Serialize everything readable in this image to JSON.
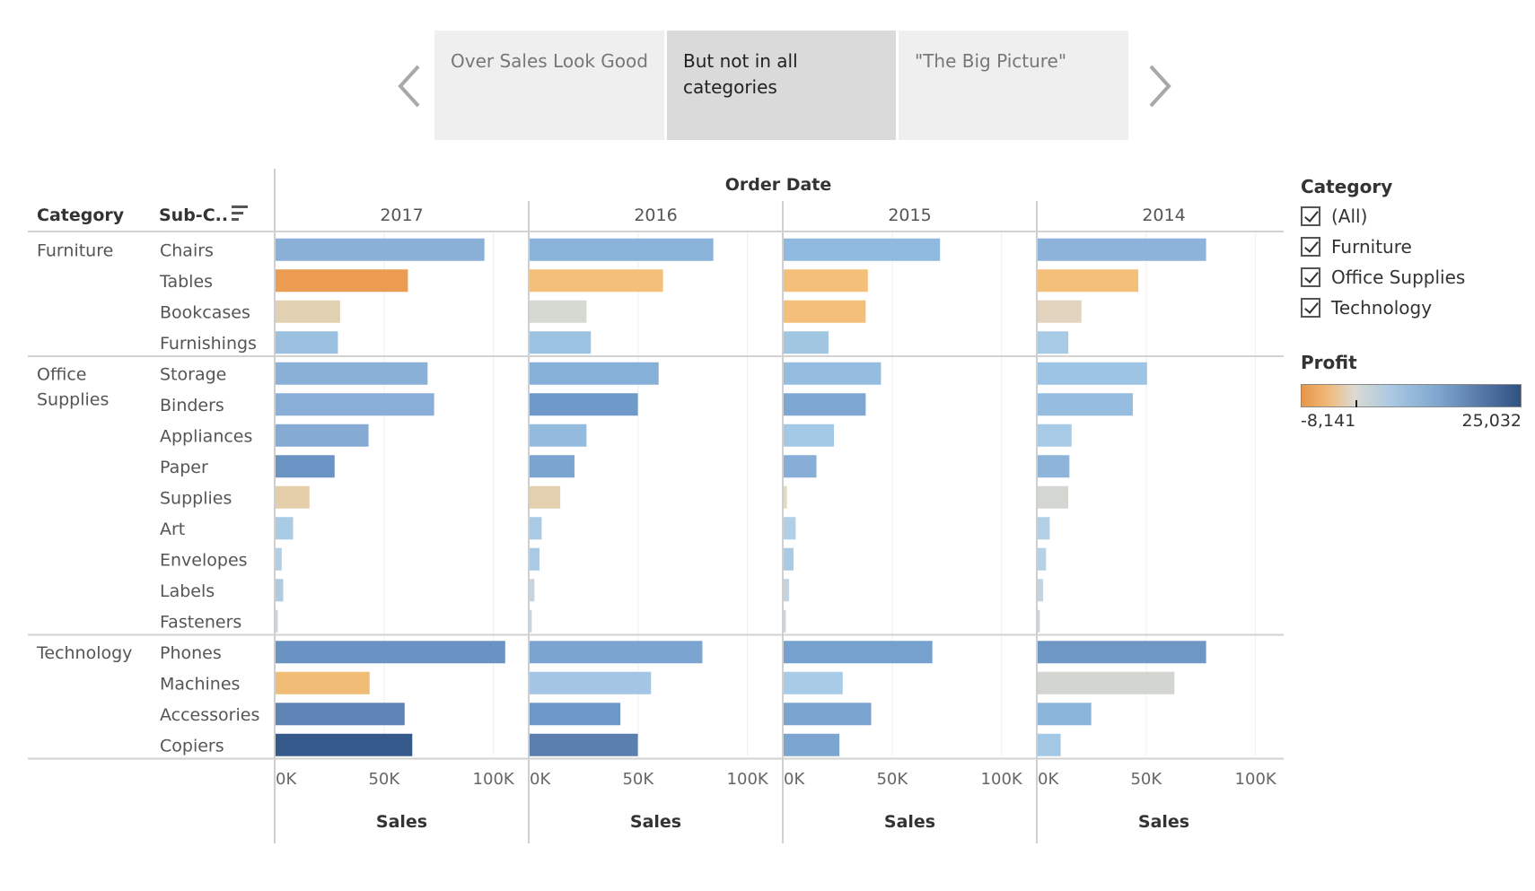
{
  "story": {
    "points": [
      {
        "label": "Over Sales Look Good",
        "active": false
      },
      {
        "label": "But not in all categories",
        "active": true
      },
      {
        "label": "\"The Big Picture\"",
        "active": false
      }
    ],
    "prev_icon": "chevron-left-icon",
    "next_icon": "chevron-right-icon"
  },
  "legend": {
    "category_title": "Category",
    "category_items": [
      "(All)",
      "Furniture",
      "Office Supplies",
      "Technology"
    ],
    "profit_title": "Profit",
    "profit_min": "-8,141",
    "profit_max": "25,032"
  },
  "chart_data": {
    "type": "bar",
    "column_header": "Order Date",
    "row_headers": {
      "category": "Category",
      "subcategory": "Sub-C.."
    },
    "sort_icon": "sort-icon",
    "years": [
      "2017",
      "2016",
      "2015",
      "2014"
    ],
    "xlabel": "Sales",
    "xticks": [
      "0K",
      "50K",
      "100K"
    ],
    "xlim": [
      0,
      110000
    ],
    "groups": [
      {
        "category": "Furniture",
        "subcategories": [
          "Chairs",
          "Tables",
          "Bookcases",
          "Furnishings"
        ]
      },
      {
        "category": "Office Supplies",
        "subcategories": [
          "Storage",
          "Binders",
          "Appliances",
          "Paper",
          "Supplies",
          "Art",
          "Envelopes",
          "Labels",
          "Fasteners"
        ]
      },
      {
        "category": "Technology",
        "subcategories": [
          "Phones",
          "Machines",
          "Accessories",
          "Copiers"
        ]
      }
    ],
    "series": [
      {
        "year": "2017",
        "values": [
          95500,
          60500,
          29500,
          28500,
          69500,
          72500,
          42500,
          27000,
          15500,
          8000,
          2800,
          3500,
          1000,
          105000,
          43000,
          59000,
          62500
        ],
        "colors": [
          "#8bb0d8",
          "#eb9c50",
          "#e1d0b1",
          "#9cc0df",
          "#8bb0d8",
          "#89aed7",
          "#85aad4",
          "#6b94c5",
          "#e5cfaa",
          "#a9cbe4",
          "#b0cfe6",
          "#b0cae0",
          "#c8d4de",
          "#6a93c4",
          "#f1bd76",
          "#5e83b5",
          "#35598a"
        ]
      },
      {
        "year": "2016",
        "values": [
          84000,
          61000,
          26000,
          28000,
          59000,
          49500,
          26000,
          20500,
          14000,
          5500,
          4500,
          2200,
          1000,
          79000,
          55500,
          41500,
          49500
        ],
        "colors": [
          "#8ab3da",
          "#f3bf79",
          "#d6d8d2",
          "#9cc4e2",
          "#87b0d8",
          "#6e99c9",
          "#92bbdd",
          "#7ba4d0",
          "#e3d0ae",
          "#aac9e2",
          "#a9c9e4",
          "#c7d4dd",
          "#c9d6df",
          "#7ba4d0",
          "#a4c6e4",
          "#6e97c9",
          "#5b7fae"
        ]
      },
      {
        "year": "2015",
        "values": [
          71500,
          38500,
          37500,
          20500,
          44500,
          37500,
          23000,
          15000,
          1500,
          5500,
          4500,
          2500,
          1000,
          68000,
          27000,
          40000,
          25500
        ],
        "colors": [
          "#8fb9de",
          "#f3bf79",
          "#f3bf79",
          "#a0c6e2",
          "#94bde0",
          "#7ea8d2",
          "#a4c9e6",
          "#86aed7",
          "#e8d8bd",
          "#b1cfe6",
          "#aac9e4",
          "#c3d3df",
          "#cad6df",
          "#76a1ce",
          "#a8cce8",
          "#7aa3cf",
          "#7ca5cf"
        ]
      },
      {
        "year": "2014",
        "values": [
          77000,
          46000,
          20000,
          14000,
          50000,
          43500,
          15500,
          14500,
          14000,
          5500,
          3800,
          2500,
          1000,
          77000,
          62500,
          24500,
          10500
        ],
        "colors": [
          "#8db3da",
          "#f3bf79",
          "#e2d3bf",
          "#a8cbe5",
          "#9dc4e4",
          "#94bde0",
          "#a7cbe6",
          "#8fb4da",
          "#d4d6d2",
          "#b4d0e5",
          "#b7d1e4",
          "#c4d3df",
          "#cbd6df",
          "#6e97c6",
          "#d3d5d0",
          "#8cb5dc",
          "#a3c8e6"
        ]
      }
    ]
  }
}
